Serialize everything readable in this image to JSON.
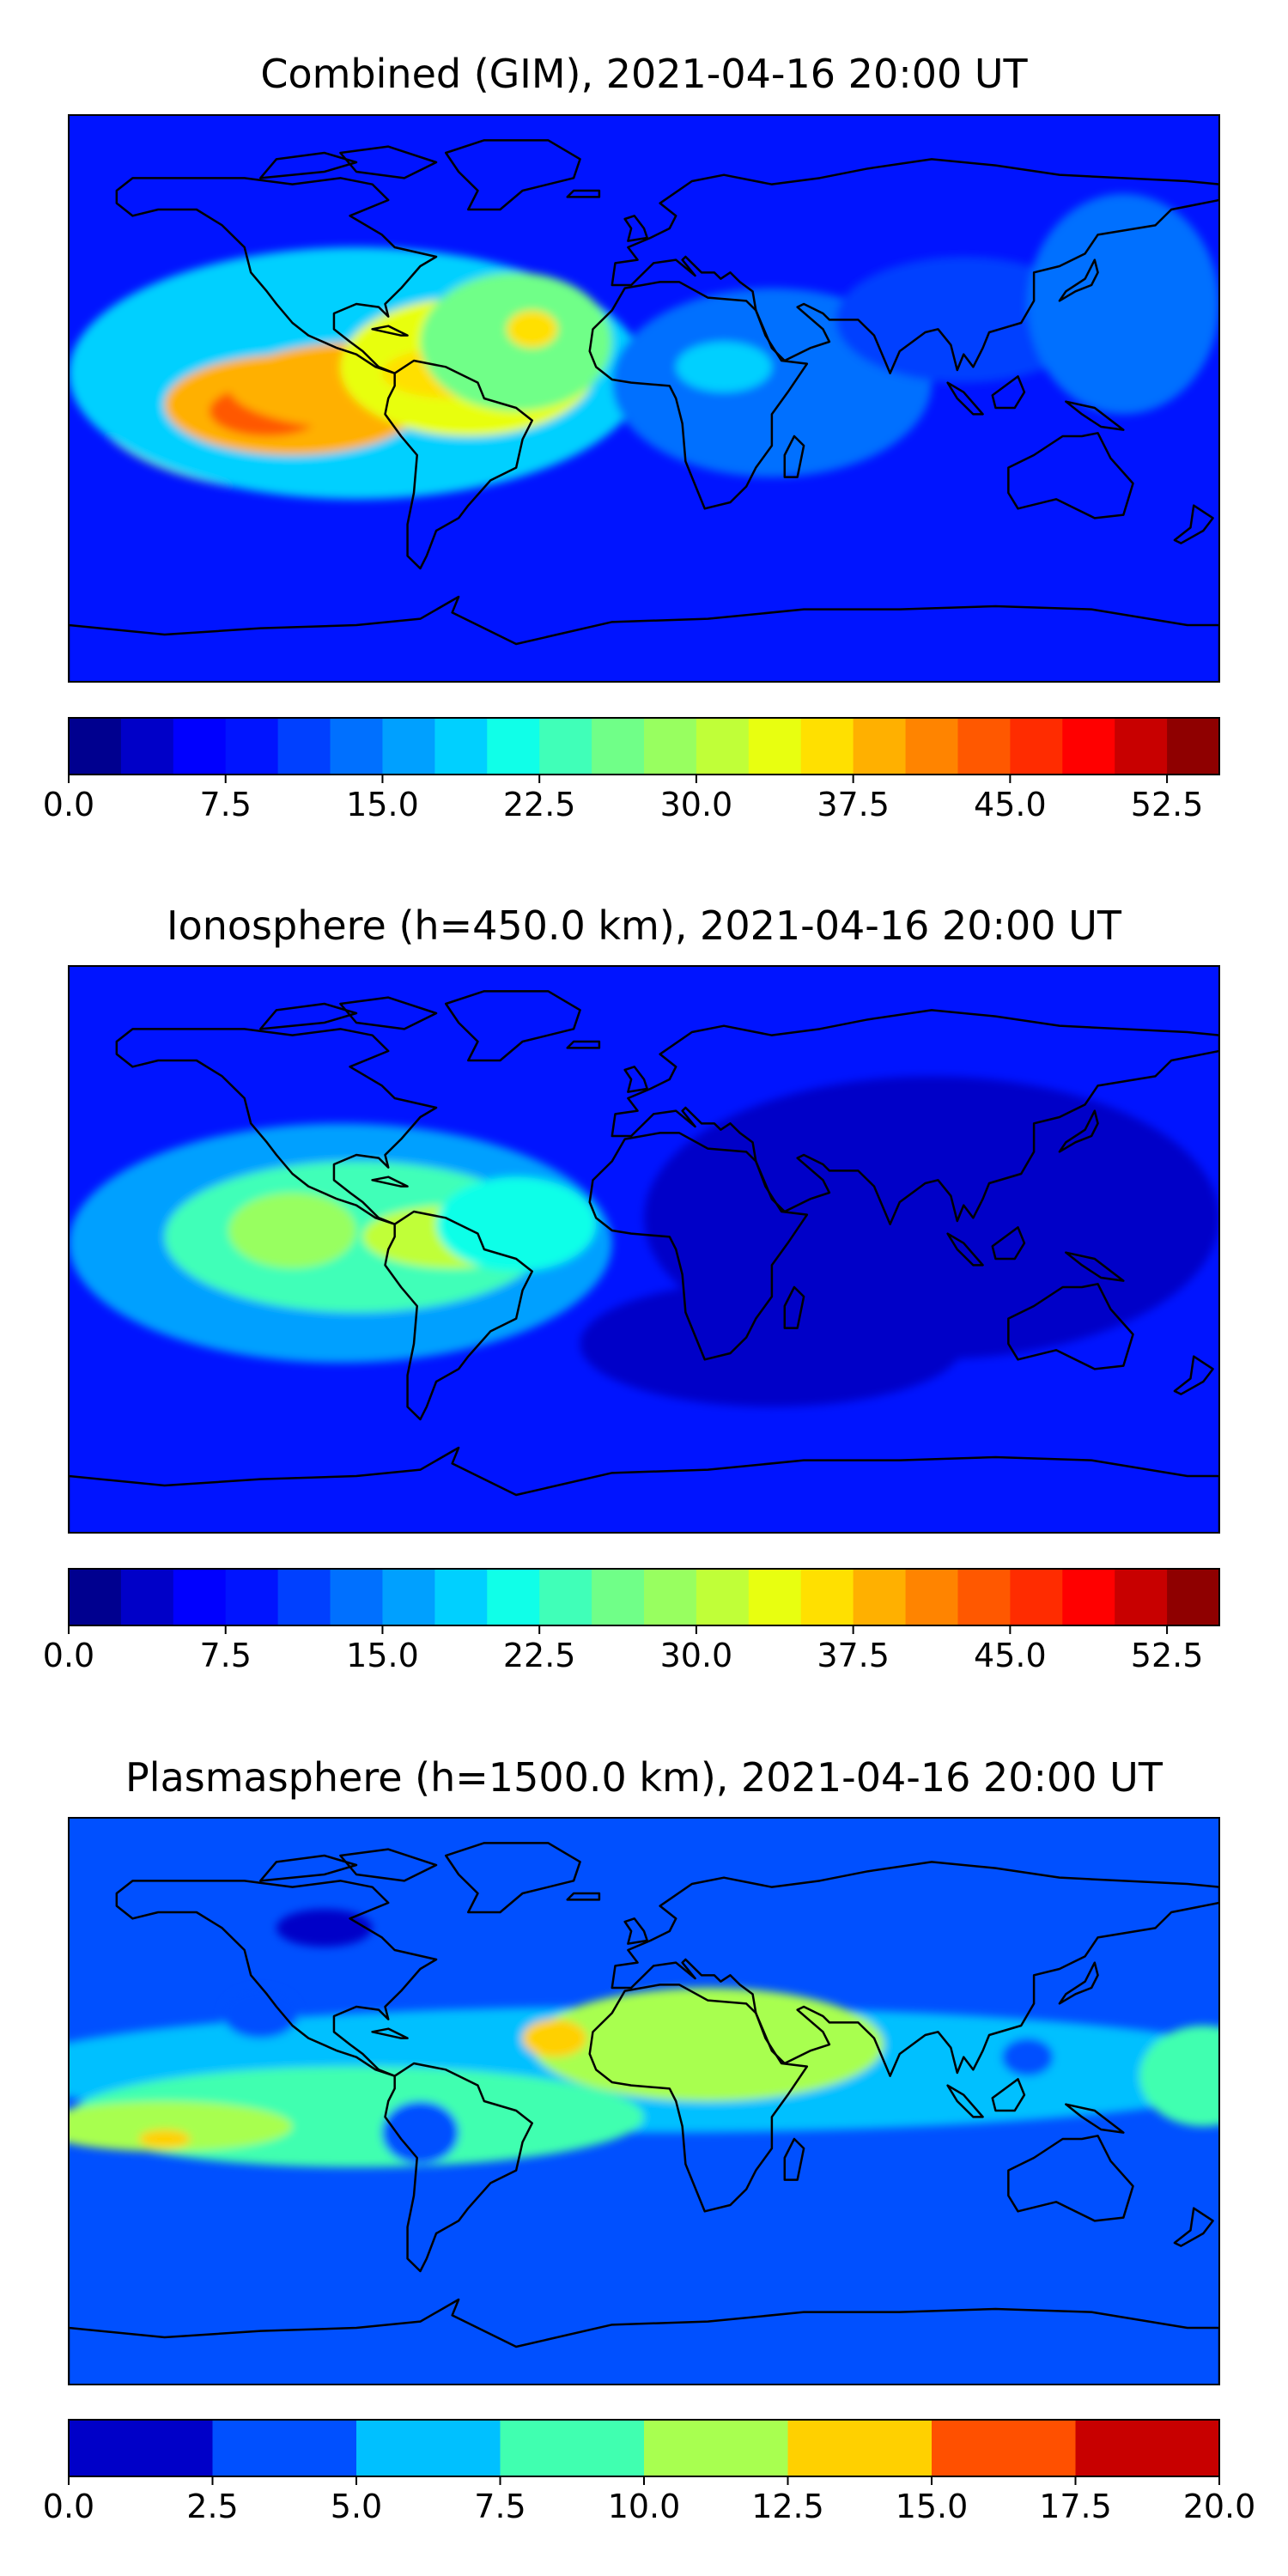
{
  "panels": [
    {
      "title": "Combined (GIM), 2021-04-16 20:00 UT",
      "colorbar": {
        "levels": 22,
        "ticks": [
          "0.0",
          "7.5",
          "15.0",
          "22.5",
          "30.0",
          "37.5",
          "45.0",
          "52.5"
        ],
        "tick_values": [
          0,
          7.5,
          15,
          22.5,
          30,
          37.5,
          45,
          52.5
        ],
        "range": [
          0,
          55
        ]
      },
      "features": [
        {
          "lon": -105,
          "lat": 2,
          "rx": 70,
          "ry": 32,
          "level": 11
        },
        {
          "lon": -90,
          "lat": 8,
          "rx": 90,
          "ry": 40,
          "level": 7
        },
        {
          "lon": -110,
          "lat": -2,
          "rx": 40,
          "ry": 16,
          "level": 15
        },
        {
          "lon": -118,
          "lat": -4,
          "rx": 18,
          "ry": 8,
          "level": 17
        },
        {
          "lon": -85,
          "lat": 4,
          "rx": 45,
          "ry": 14,
          "level": 15
        },
        {
          "lon": -55,
          "lat": 10,
          "rx": 40,
          "ry": 22,
          "level": 13
        },
        {
          "lon": -60,
          "lat": 8,
          "rx": 22,
          "ry": 8,
          "level": 14
        },
        {
          "lon": -40,
          "lat": 18,
          "rx": 30,
          "ry": 22,
          "level": 10
        },
        {
          "lon": -35,
          "lat": 22,
          "rx": 8,
          "ry": 6,
          "level": 14
        },
        {
          "lon": 40,
          "lat": 5,
          "rx": 50,
          "ry": 30,
          "level": 5
        },
        {
          "lon": 25,
          "lat": 10,
          "rx": 15,
          "ry": 8,
          "level": 7
        },
        {
          "lon": 100,
          "lat": 25,
          "rx": 40,
          "ry": 20,
          "level": 4
        },
        {
          "lon": 150,
          "lat": 30,
          "rx": 30,
          "ry": 35,
          "level": 5
        }
      ]
    },
    {
      "title": "Ionosphere  (h=450.0 km), 2021-04-16 20:00 UT",
      "colorbar": {
        "levels": 22,
        "ticks": [
          "0.0",
          "7.5",
          "15.0",
          "22.5",
          "30.0",
          "37.5",
          "45.0",
          "52.5"
        ],
        "tick_values": [
          0,
          7.5,
          15,
          22.5,
          30,
          37.5,
          45,
          52.5
        ],
        "range": [
          0,
          55
        ]
      },
      "features": [
        {
          "lon": -95,
          "lat": 2,
          "rx": 85,
          "ry": 38,
          "level": 6
        },
        {
          "lon": -90,
          "lat": 4,
          "rx": 60,
          "ry": 24,
          "level": 9
        },
        {
          "lon": -110,
          "lat": 6,
          "rx": 20,
          "ry": 12,
          "level": 11
        },
        {
          "lon": -60,
          "lat": 4,
          "rx": 28,
          "ry": 10,
          "level": 12
        },
        {
          "lon": -40,
          "lat": 8,
          "rx": 25,
          "ry": 15,
          "level": 8
        },
        {
          "lon": 90,
          "lat": 10,
          "rx": 90,
          "ry": 45,
          "level": 1
        },
        {
          "lon": 40,
          "lat": -30,
          "rx": 60,
          "ry": 20,
          "level": 1
        }
      ]
    },
    {
      "title": "Plasmasphere (h=1500.0 km), 2021-04-16 20:00 UT",
      "colorbar": {
        "levels": 8,
        "ticks": [
          "0.0",
          "2.5",
          "5.0",
          "7.5",
          "10.0",
          "12.5",
          "15.0",
          "17.5",
          "20.0"
        ],
        "tick_values": [
          0,
          2.5,
          5,
          7.5,
          10,
          12.5,
          15,
          17.5,
          20
        ],
        "range": [
          0,
          20
        ]
      },
      "features": [
        {
          "lon": 0,
          "lat": 10,
          "rx": 200,
          "ry": 20,
          "level": 2
        },
        {
          "lon": -90,
          "lat": -5,
          "rx": 90,
          "ry": 16,
          "level": 3
        },
        {
          "lon": 20,
          "lat": 18,
          "rx": 55,
          "ry": 18,
          "level": 4
        },
        {
          "lon": -28,
          "lat": 20,
          "rx": 10,
          "ry": 6,
          "level": 5
        },
        {
          "lon": -150,
          "lat": -8,
          "rx": 40,
          "ry": 8,
          "level": 4
        },
        {
          "lon": -150,
          "lat": -12,
          "rx": 8,
          "ry": 3,
          "level": 5
        },
        {
          "lon": 175,
          "lat": 8,
          "rx": 20,
          "ry": 16,
          "level": 3
        },
        {
          "lon": -70,
          "lat": -10,
          "rx": 12,
          "ry": 10,
          "level": 1
        },
        {
          "lon": -120,
          "lat": 28,
          "rx": 12,
          "ry": 8,
          "level": 1
        },
        {
          "lon": -100,
          "lat": 55,
          "rx": 15,
          "ry": 6,
          "level": 0
        },
        {
          "lon": 120,
          "lat": 14,
          "rx": 8,
          "ry": 6,
          "level": 1
        }
      ]
    }
  ],
  "colors": {
    "jet22": [
      "#00008f",
      "#0000c8",
      "#0000ff",
      "#0014ff",
      "#0040ff",
      "#0070ff",
      "#00a0ff",
      "#00d0ff",
      "#10ffe8",
      "#40ffb8",
      "#70ff88",
      "#98ff60",
      "#c0ff38",
      "#e8ff10",
      "#ffe000",
      "#ffb000",
      "#ff8400",
      "#ff5800",
      "#ff2c00",
      "#ff0000",
      "#c80000",
      "#8f0000"
    ],
    "jet8": [
      "#0000c8",
      "#0050ff",
      "#00c0ff",
      "#40ffb0",
      "#a8ff50",
      "#ffd000",
      "#ff5000",
      "#c80000"
    ],
    "coastline": "#000000"
  }
}
